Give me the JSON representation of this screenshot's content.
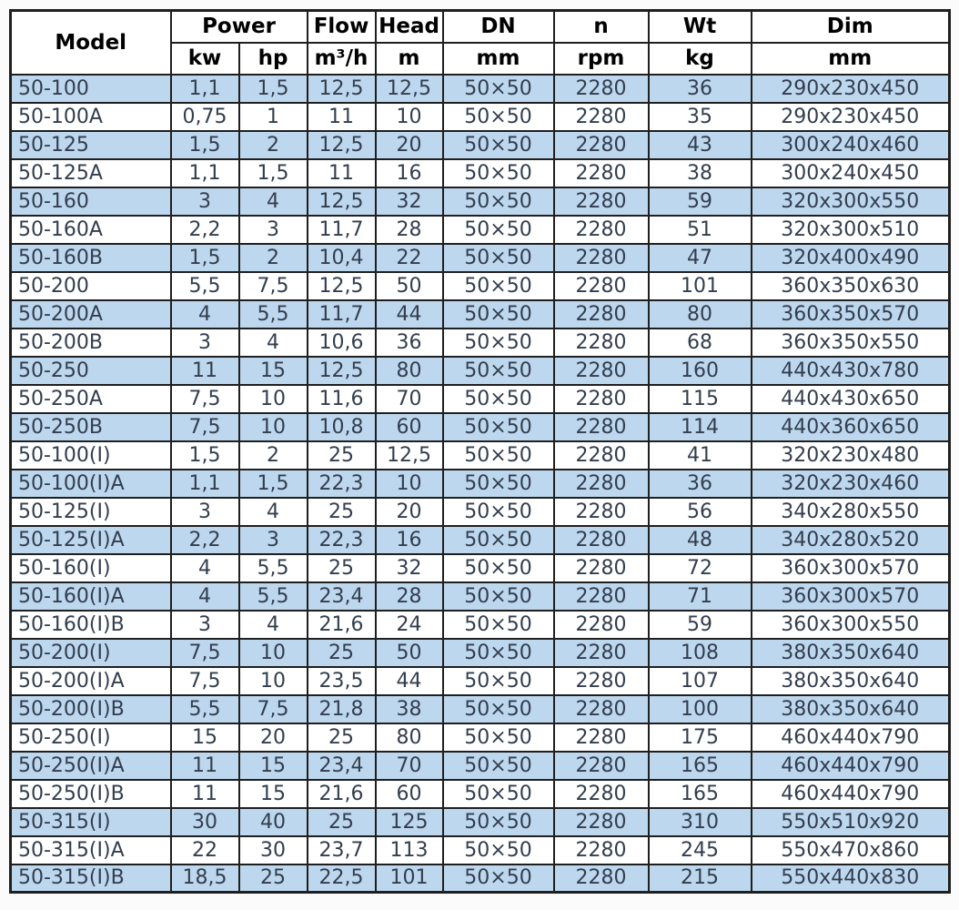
{
  "table": {
    "header": {
      "model": "Model",
      "power": "Power",
      "flow": "Flow",
      "head": "Head",
      "dn": "DN",
      "n": "n",
      "wt": "Wt",
      "dim": "Dim",
      "units": [
        "kw",
        "hp",
        "m³/h",
        "m",
        "mm",
        "rpm",
        "kg",
        "mm"
      ]
    },
    "columns": [
      "model",
      "power_kw",
      "power_hp",
      "flow_m3h",
      "head_m",
      "dn_mm",
      "n_rpm",
      "wt_kg",
      "dim_mm"
    ],
    "rows": [
      [
        "50-100",
        "1,1",
        "1,5",
        "12,5",
        "12,5",
        "50×50",
        "2280",
        "36",
        "290x230x450"
      ],
      [
        "50-100A",
        "0,75",
        "1",
        "11",
        "10",
        "50×50",
        "2280",
        "35",
        "290x230x450"
      ],
      [
        "50-125",
        "1,5",
        "2",
        "12,5",
        "20",
        "50×50",
        "2280",
        "43",
        "300x240x460"
      ],
      [
        "50-125A",
        "1,1",
        "1,5",
        "11",
        "16",
        "50×50",
        "2280",
        "38",
        "300x240x450"
      ],
      [
        "50-160",
        "3",
        "4",
        "12,5",
        "32",
        "50×50",
        "2280",
        "59",
        "320x300x550"
      ],
      [
        "50-160A",
        "2,2",
        "3",
        "11,7",
        "28",
        "50×50",
        "2280",
        "51",
        "320x300x510"
      ],
      [
        "50-160B",
        "1,5",
        "2",
        "10,4",
        "22",
        "50×50",
        "2280",
        "47",
        "320x400x490"
      ],
      [
        "50-200",
        "5,5",
        "7,5",
        "12,5",
        "50",
        "50×50",
        "2280",
        "101",
        "360x350x630"
      ],
      [
        "50-200A",
        "4",
        "5,5",
        "11,7",
        "44",
        "50×50",
        "2280",
        "80",
        "360x350x570"
      ],
      [
        "50-200B",
        "3",
        "4",
        "10,6",
        "36",
        "50×50",
        "2280",
        "68",
        "360x350x550"
      ],
      [
        "50-250",
        "11",
        "15",
        "12,5",
        "80",
        "50×50",
        "2280",
        "160",
        "440x430x780"
      ],
      [
        "50-250A",
        "7,5",
        "10",
        "11,6",
        "70",
        "50×50",
        "2280",
        "115",
        "440x430x650"
      ],
      [
        "50-250B",
        "7,5",
        "10",
        "10,8",
        "60",
        "50×50",
        "2280",
        "114",
        "440x360x650"
      ],
      [
        "50-100(I)",
        "1,5",
        "2",
        "25",
        "12,5",
        "50×50",
        "2280",
        "41",
        "320x230x480"
      ],
      [
        "50-100(I)A",
        "1,1",
        "1,5",
        "22,3",
        "10",
        "50×50",
        "2280",
        "36",
        "320x230x460"
      ],
      [
        "50-125(I)",
        "3",
        "4",
        "25",
        "20",
        "50×50",
        "2280",
        "56",
        "340x280x550"
      ],
      [
        "50-125(I)A",
        "2,2",
        "3",
        "22,3",
        "16",
        "50×50",
        "2280",
        "48",
        "340x280x520"
      ],
      [
        "50-160(I)",
        "4",
        "5,5",
        "25",
        "32",
        "50×50",
        "2280",
        "72",
        "360x300x570"
      ],
      [
        "50-160(I)A",
        "4",
        "5,5",
        "23,4",
        "28",
        "50×50",
        "2280",
        "71",
        "360x300x570"
      ],
      [
        "50-160(I)B",
        "3",
        "4",
        "21,6",
        "24",
        "50×50",
        "2280",
        "59",
        "360x300x550"
      ],
      [
        "50-200(I)",
        "7,5",
        "10",
        "25",
        "50",
        "50×50",
        "2280",
        "108",
        "380x350x640"
      ],
      [
        "50-200(I)A",
        "7,5",
        "10",
        "23,5",
        "44",
        "50×50",
        "2280",
        "107",
        "380x350x640"
      ],
      [
        "50-200(I)B",
        "5,5",
        "7,5",
        "21,8",
        "38",
        "50×50",
        "2280",
        "100",
        "380x350x640"
      ],
      [
        "50-250(I)",
        "15",
        "20",
        "25",
        "80",
        "50×50",
        "2280",
        "175",
        "460x440x790"
      ],
      [
        "50-250(I)A",
        "11",
        "15",
        "23,4",
        "70",
        "50×50",
        "2280",
        "165",
        "460x440x790"
      ],
      [
        "50-250(I)B",
        "11",
        "15",
        "21,6",
        "60",
        "50×50",
        "2280",
        "165",
        "460x440x790"
      ],
      [
        "50-315(I)",
        "30",
        "40",
        "25",
        "125",
        "50×50",
        "2280",
        "310",
        "550x510x920"
      ],
      [
        "50-315(I)A",
        "22",
        "30",
        "23,7",
        "113",
        "50×50",
        "2280",
        "245",
        "550x470x860"
      ],
      [
        "50-315(I)B",
        "18,5",
        "25",
        "22,5",
        "101",
        "50×50",
        "2280",
        "215",
        "550x440x830"
      ]
    ],
    "striping": "odd_rows_highlighted"
  },
  "colors": {
    "row_highlight": "#bdd7ee",
    "row_plain": "#ffffff",
    "border": "#1f1f1f",
    "header_text": "#000000",
    "body_text": "#333e4e"
  }
}
